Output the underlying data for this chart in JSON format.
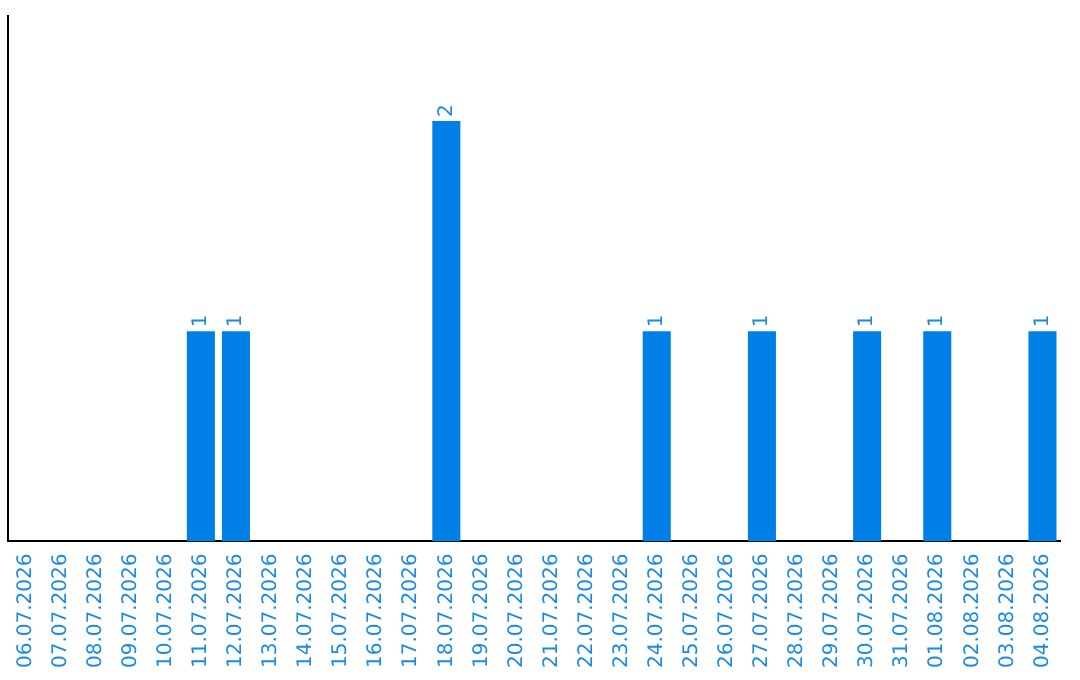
{
  "chart_data": {
    "type": "bar",
    "categories": [
      "06.07.2026",
      "07.07.2026",
      "08.07.2026",
      "09.07.2026",
      "10.07.2026",
      "11.07.2026",
      "12.07.2026",
      "13.07.2026",
      "14.07.2026",
      "15.07.2026",
      "16.07.2026",
      "17.07.2026",
      "18.07.2026",
      "19.07.2026",
      "20.07.2026",
      "21.07.2026",
      "22.07.2026",
      "23.07.2026",
      "24.07.2026",
      "25.07.2026",
      "26.07.2026",
      "27.07.2026",
      "28.07.2026",
      "29.07.2026",
      "30.07.2026",
      "31.07.2026",
      "01.08.2026",
      "02.08.2026",
      "03.08.2026",
      "04.08.2026"
    ],
    "values": [
      0,
      0,
      0,
      0,
      0,
      1,
      1,
      0,
      0,
      0,
      0,
      0,
      2,
      0,
      0,
      0,
      0,
      0,
      1,
      0,
      0,
      1,
      0,
      0,
      1,
      0,
      1,
      0,
      0,
      1
    ],
    "value_labels": [
      null,
      null,
      null,
      null,
      null,
      "1",
      "1",
      null,
      null,
      null,
      null,
      null,
      "2",
      null,
      null,
      null,
      null,
      null,
      "1",
      null,
      null,
      "1",
      null,
      null,
      "1",
      null,
      "1",
      null,
      null,
      "1"
    ],
    "color": "#0080e6",
    "tick_labels": "x",
    "grid": false,
    "legend": false
  }
}
